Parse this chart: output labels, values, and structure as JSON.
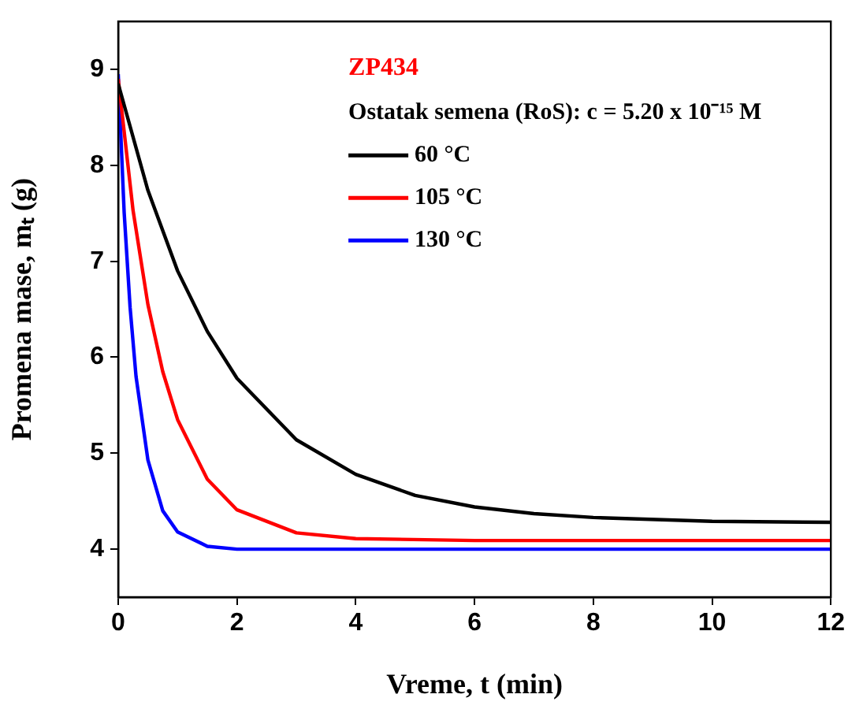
{
  "chart_data": {
    "type": "line",
    "xlabel": "Vreme, t (min)",
    "ylabel": "Promena mase, mₜ (g)",
    "legend_title": "Ostatak semena (RoS): c = 5.20 x 10⁻¹⁵ M",
    "annotations": [
      "ZP434"
    ],
    "xlim": [
      0,
      12
    ],
    "xticks": [
      0,
      2,
      4,
      6,
      8,
      10,
      12
    ],
    "ylim": [
      3.5,
      9.5
    ],
    "yticks": [
      4,
      5,
      6,
      7,
      8,
      9
    ],
    "grid": false,
    "legend": "top",
    "marker": "none",
    "line_style": "solid",
    "series": [
      {
        "name": "60 °C",
        "color": "#000000",
        "x": [
          0,
          0.5,
          1,
          1.5,
          2,
          3,
          4,
          5,
          6,
          7,
          8,
          10,
          12
        ],
        "values": [
          8.85,
          7.74,
          6.9,
          6.27,
          5.78,
          5.14,
          4.78,
          4.56,
          4.44,
          4.37,
          4.33,
          4.29,
          4.28
        ]
      },
      {
        "name": "105 °C",
        "color": "#ff0000",
        "x": [
          0,
          0.25,
          0.5,
          0.75,
          1,
          1.5,
          2,
          3,
          4,
          6,
          12
        ],
        "values": [
          8.9,
          7.53,
          6.55,
          5.85,
          5.35,
          4.73,
          4.41,
          4.17,
          4.11,
          4.09,
          4.09
        ]
      },
      {
        "name": "130 °C",
        "color": "#0000ff",
        "x": [
          0,
          0.1,
          0.2,
          0.3,
          0.5,
          0.75,
          1,
          1.5,
          2,
          12
        ],
        "values": [
          8.95,
          7.51,
          6.52,
          5.8,
          4.93,
          4.4,
          4.18,
          4.03,
          4.0,
          4.0
        ]
      }
    ]
  }
}
